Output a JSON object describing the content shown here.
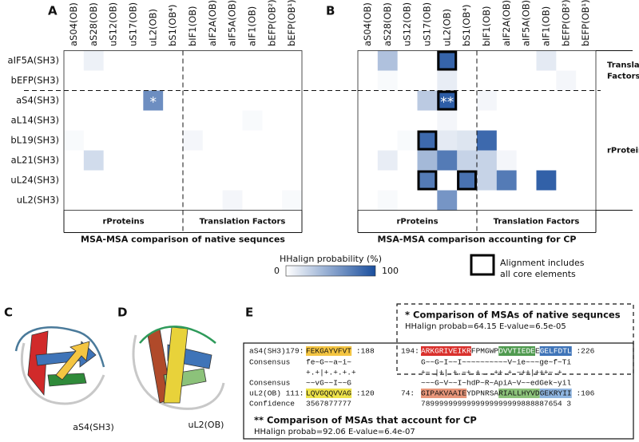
{
  "chart_data": [
    {
      "type": "heatmap",
      "letter": "A",
      "title": "MSA-MSA comparison of native sequnces",
      "rows": [
        "aIF5A(SH3)",
        "bEFP(SH3)",
        "aS4(SH3)",
        "aL14(SH3)",
        "bL19(SH3)",
        "aL21(SH3)",
        "uL24(SH3)",
        "uL2(SH3)"
      ],
      "columns": [
        "aS04(OB)",
        "aS28(OB)",
        "uS12(OB)",
        "uS17(OB)",
        "uL2(OB)",
        "bS1(OB⁴)",
        "bIF1(OB)",
        "aIF2A(OB)",
        "aIF5A(OB)",
        "aIF1(OB)",
        "bEFP(OB²)",
        "bEFP(OB¹)"
      ],
      "values": [
        [
          0,
          8,
          0,
          0,
          0,
          0,
          0,
          0,
          0,
          0,
          0,
          0
        ],
        [
          0,
          0,
          0,
          0,
          0,
          0,
          0,
          0,
          0,
          0,
          0,
          0
        ],
        [
          0,
          0,
          0,
          0,
          64,
          0,
          0,
          0,
          0,
          0,
          0,
          0
        ],
        [
          0,
          0,
          0,
          0,
          0,
          0,
          0,
          0,
          0,
          3,
          0,
          0
        ],
        [
          3,
          0,
          0,
          0,
          0,
          0,
          5,
          0,
          0,
          0,
          0,
          0
        ],
        [
          0,
          20,
          0,
          0,
          0,
          0,
          0,
          0,
          0,
          0,
          0,
          0
        ],
        [
          0,
          0,
          0,
          0,
          0,
          0,
          0,
          0,
          0,
          0,
          0,
          0
        ],
        [
          0,
          0,
          0,
          0,
          0,
          0,
          0,
          0,
          5,
          0,
          0,
          3
        ]
      ],
      "zlim": [
        0,
        100
      ],
      "colorscale": [
        "#ffffff",
        "#1b4f9e"
      ],
      "annotations": [
        {
          "row": "aS4(SH3)",
          "column": "uL2(OB)",
          "text": "*"
        }
      ],
      "boxed": [],
      "row_split_after": "bEFP(SH3)",
      "column_split_after": "bS1(OB⁴)",
      "column_groups": [
        {
          "label": "rProteins",
          "first": "aS04(OB)",
          "last": "bS1(OB⁴)"
        },
        {
          "label": "Translation Factors",
          "first": "bIF1(OB)",
          "last": "bEFP(OB¹)"
        }
      ],
      "row_groups": []
    },
    {
      "type": "heatmap",
      "letter": "B",
      "title": "MSA-MSA comparison accounting for CP",
      "rows": [
        "aIF5A(SH3)",
        "bEFP(SH3)",
        "aS4(SH3)",
        "aL14(SH3)",
        "bL19(SH3)",
        "aL21(SH3)",
        "uL24(SH3)",
        "uL2(SH3)"
      ],
      "columns": [
        "aS04(OB)",
        "aS28(OB)",
        "uS12(OB)",
        "uS17(OB)",
        "uL2(OB)",
        "bS1(OB⁴)",
        "bIF1(OB)",
        "aIF2A(OB)",
        "aIF5A(OB)",
        "aIF1(OB)",
        "bEFP(OB²)",
        "bEFP(OB¹)"
      ],
      "values": [
        [
          0,
          35,
          0,
          0,
          88,
          0,
          0,
          0,
          0,
          12,
          0,
          0
        ],
        [
          0,
          3,
          0,
          0,
          10,
          0,
          0,
          0,
          0,
          0,
          5,
          0
        ],
        [
          0,
          0,
          0,
          30,
          92,
          0,
          5,
          0,
          0,
          0,
          0,
          0
        ],
        [
          0,
          0,
          0,
          0,
          5,
          0,
          0,
          0,
          0,
          0,
          0,
          0
        ],
        [
          0,
          0,
          3,
          85,
          12,
          15,
          85,
          0,
          0,
          0,
          0,
          0
        ],
        [
          0,
          10,
          0,
          40,
          75,
          25,
          25,
          5,
          0,
          0,
          0,
          0
        ],
        [
          0,
          0,
          0,
          75,
          0,
          80,
          25,
          75,
          0,
          90,
          0,
          0
        ],
        [
          0,
          3,
          0,
          0,
          60,
          0,
          0,
          0,
          0,
          0,
          0,
          0
        ]
      ],
      "zlim": [
        0,
        100
      ],
      "colorscale": [
        "#ffffff",
        "#1b4f9e"
      ],
      "annotations": [
        {
          "row": "aS4(SH3)",
          "column": "uL2(OB)",
          "text": "**"
        }
      ],
      "boxed": [
        {
          "row": "aIF5A(SH3)",
          "column": "uL2(OB)"
        },
        {
          "row": "aS4(SH3)",
          "column": "uL2(OB)"
        },
        {
          "row": "bL19(SH3)",
          "column": "uS17(OB)"
        },
        {
          "row": "uL24(SH3)",
          "column": "uS17(OB)"
        },
        {
          "row": "uL24(SH3)",
          "column": "bS1(OB⁴)"
        }
      ],
      "row_split_after": "bEFP(SH3)",
      "column_split_after": "bS1(OB⁴)",
      "column_groups": [
        {
          "label": "rProteins",
          "first": "aS04(OB)",
          "last": "bS1(OB⁴)"
        },
        {
          "label": "Translation Factors",
          "first": "bIF1(OB)",
          "last": "bEFP(OB¹)"
        }
      ],
      "row_groups": [
        {
          "label": [
            "Translation",
            "Factors"
          ],
          "first": "aIF5A(SH3)",
          "last": "bEFP(SH3)"
        },
        {
          "label": [
            "rProteins"
          ],
          "first": "aS4(SH3)",
          "last": "uL2(SH3)"
        }
      ]
    }
  ],
  "legend": {
    "title": "HHalign probability (%)",
    "ticks": [
      0,
      100
    ],
    "box_label": [
      "Alignment includes",
      "all core elements"
    ]
  },
  "panel_c": {
    "letter": "C",
    "label": "aS4(SH3)"
  },
  "panel_d": {
    "letter": "D",
    "label": "uL2(OB)"
  },
  "panel_e": {
    "letter": "E",
    "note_1": {
      "title": "* Comparison of MSAs of native sequnces",
      "stats": "HHalign probab=64.15  E-value=6.5e-05"
    },
    "note_2": {
      "title": "** Comparison of MSAs that account for CP",
      "stats": "HHalign probab=92.06  E-value=6.4e-07"
    },
    "left": [
      {
        "label": "aS4(SH3)179:",
        "segments": [
          {
            "text": "FEKGAYVFVT",
            "highlight": "#f4c542"
          }
        ],
        "end": ":188"
      },
      {
        "label": "Consensus",
        "segments": [
          {
            "text": "fe~G~~a~i~"
          }
        ]
      },
      {
        "segments": [
          {
            "text": "+.+|+.+.+.+"
          }
        ]
      },
      {
        "label": "Consensus",
        "segments": [
          {
            "text": "~~vG~~I~~G"
          }
        ]
      },
      {
        "label": "uL2(OB) 111:",
        "segments": [
          {
            "text": "LQVGQQVVAG",
            "highlight": "#eee34a"
          }
        ],
        "end": ":120"
      },
      {
        "label": "Confidence",
        "segments": [
          {
            "text": "3567877777"
          }
        ]
      }
    ],
    "right": [
      {
        "label": "194:",
        "segments": [
          {
            "text": "ARKGRIVEIKR",
            "highlight": "#d9302c",
            "text_color": "#ffffff"
          },
          {
            "text": "FPMGWP"
          },
          {
            "text": "DVVTIEDE",
            "highlight": "#4f9a4f",
            "text_color": "#ffffff"
          },
          {
            "text": "E"
          },
          {
            "text": "GELFDTL",
            "highlight": "#3f74b8",
            "text_color": "#ffffff"
          }
        ],
        "end": ":226"
      },
      {
        "segments": [
          {
            "text": "G~~G~I~~I~~~~~~~~~~V~ie~~~ge~f~Ti"
          }
        ]
      },
      {
        "segments": [
          {
            "text": "+~.|+|.+.~+.+...++.+.~++|+++~.+"
          }
        ]
      },
      {
        "segments": [
          {
            "text": "~~~G~V~~I~hdP~R~ApiA~V~~edGek~yil"
          }
        ]
      },
      {
        "label": "74:",
        "segments": [
          {
            "text": "GIPAKVAAIE",
            "highlight": "#e8967a"
          },
          {
            "text": "YDPNRSA"
          },
          {
            "text": "RIALLHYVD",
            "highlight": "#8cc27a"
          },
          {
            "text": "GEKRYII",
            "highlight": "#8fb5e0"
          }
        ],
        "end": ":106"
      },
      {
        "segments": [
          {
            "text": "7899999999999999999999888887654 3"
          }
        ]
      }
    ]
  }
}
